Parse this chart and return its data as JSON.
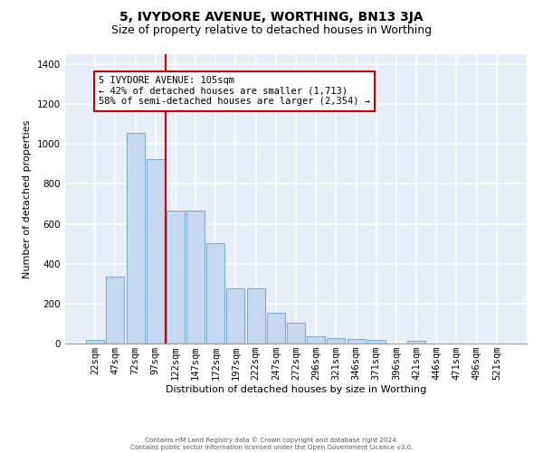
{
  "title": "5, IVYDORE AVENUE, WORTHING, BN13 3JA",
  "subtitle": "Size of property relative to detached houses in Worthing",
  "xlabel": "Distribution of detached houses by size in Worthing",
  "ylabel": "Number of detached properties",
  "footer_line1": "Contains HM Land Registry data © Crown copyright and database right 2024.",
  "footer_line2": "Contains public sector information licensed under the Open Government Licence v3.0.",
  "bar_labels": [
    "22sqm",
    "47sqm",
    "72sqm",
    "97sqm",
    "122sqm",
    "147sqm",
    "172sqm",
    "197sqm",
    "222sqm",
    "247sqm",
    "272sqm",
    "296sqm",
    "321sqm",
    "346sqm",
    "371sqm",
    "396sqm",
    "421sqm",
    "446sqm",
    "471sqm",
    "496sqm",
    "521sqm"
  ],
  "bar_values": [
    20,
    335,
    1055,
    925,
    667,
    667,
    503,
    277,
    277,
    152,
    103,
    38,
    25,
    22,
    18,
    0,
    12,
    0,
    0,
    0,
    0
  ],
  "bar_color": "#c5d8f0",
  "bar_edge_color": "#7aadd4",
  "annotation_line1": "5 IVYDORE AVENUE: 105sqm",
  "annotation_line2": "← 42% of detached houses are smaller (1,713)",
  "annotation_line3": "58% of semi-detached houses are larger (2,354) →",
  "vline_position": 3.5,
  "vline_color": "#cc0000",
  "ylim": [
    0,
    1450
  ],
  "yticks": [
    0,
    200,
    400,
    600,
    800,
    1000,
    1200,
    1400
  ],
  "background_color": "#e8eef8",
  "grid_color": "#ffffff",
  "title_fontsize": 10,
  "subtitle_fontsize": 9,
  "xlabel_fontsize": 8,
  "ylabel_fontsize": 8,
  "tick_fontsize": 7.5,
  "annotation_fontsize": 7.5
}
